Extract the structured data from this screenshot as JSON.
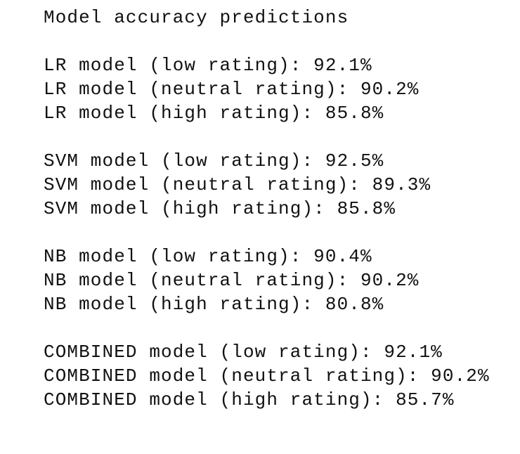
{
  "title": "Model accuracy predictions",
  "groups": [
    [
      "LR model (low rating): 92.1%",
      "LR model (neutral rating): 90.2%",
      "LR model (high rating): 85.8%"
    ],
    [
      "SVM model (low rating): 92.5%",
      "SVM model (neutral rating): 89.3%",
      "SVM model (high rating): 85.8%"
    ],
    [
      "NB model (low rating): 90.4%",
      "NB model (neutral rating): 90.2%",
      "NB model (high rating): 80.8%"
    ],
    [
      "COMBINED model (low rating): 92.1%",
      "COMBINED model (neutral rating): 90.2%",
      "COMBINED model (high rating): 85.7%"
    ]
  ]
}
